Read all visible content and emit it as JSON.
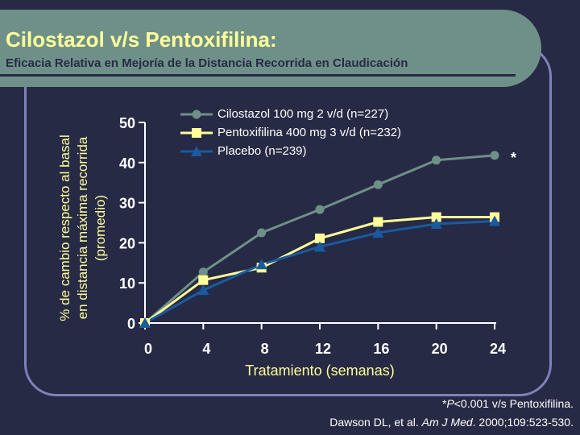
{
  "slide": {
    "title": "Cilostazol v/s Pentoxifilina:",
    "subtitle": "Eficacia Relativa en Mejoría de la Distancia Recorrida en Claudicación",
    "footnote_italic": "P",
    "footnote_star": "*",
    "footnote_rest": "<0.001 v/s Pentoxifilina.",
    "citation_pre": "Dawson DL, et al. ",
    "citation_journal": "Am J Med",
    "citation_post": ". 2000;109:523-530."
  },
  "chart_data": {
    "type": "line",
    "x": [
      0,
      4,
      8,
      12,
      16,
      20,
      24
    ],
    "xlabel": "Tratamiento (semanas)",
    "ylabel_lines": [
      "% de cambio respecto al basal",
      "en distancia máxima recorrida",
      "(promedio)"
    ],
    "ylim": [
      0,
      50
    ],
    "yticks": [
      0,
      10,
      20,
      30,
      40,
      50
    ],
    "xticks": [
      0,
      4,
      8,
      12,
      16,
      20,
      24
    ],
    "grid": false,
    "legend_position": "top-left",
    "series": [
      {
        "name": "Cilostazol 100 mg 2 v/d (n=227)",
        "values": [
          0,
          12.7,
          22.5,
          28.3,
          34.5,
          40.6,
          41.8
        ],
        "color": "#6f9088",
        "marker": "circle"
      },
      {
        "name": "Pentoxifilina 400 mg 3 v/d (n=232)",
        "values": [
          0,
          10.7,
          13.8,
          21.1,
          25.2,
          26.4,
          26.4
        ],
        "color": "#ffff99",
        "marker": "square"
      },
      {
        "name": "Placebo (n=239)",
        "values": [
          0,
          8.2,
          14.6,
          19.0,
          22.5,
          24.7,
          25.4
        ],
        "color": "#1a5aa0",
        "marker": "triangle"
      }
    ],
    "annotation": "*"
  }
}
